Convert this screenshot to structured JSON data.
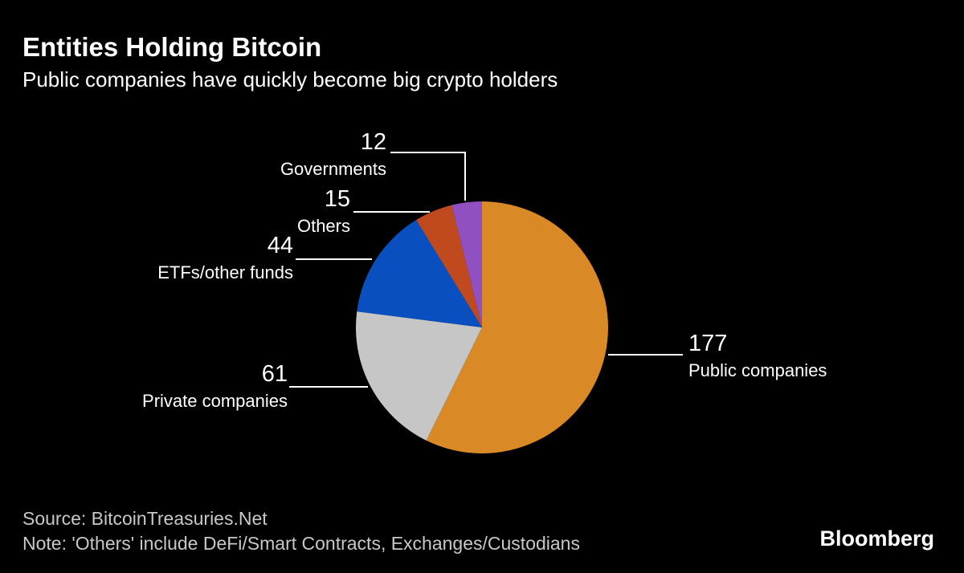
{
  "chart_data": {
    "type": "pie",
    "title": "Entities Holding Bitcoin",
    "subtitle": "Public companies have quickly become big crypto holders",
    "categories": [
      "Public companies",
      "Private companies",
      "ETFs/other funds",
      "Others",
      "Governments"
    ],
    "values": [
      177,
      61,
      44,
      15,
      12
    ],
    "colors": [
      "#d98a27",
      "#c6c6c6",
      "#0a4fbf",
      "#c04a1e",
      "#9150c0"
    ],
    "source": "Source: BitcoinTreasuries.Net",
    "note": "Note: 'Others' include DeFi/Smart Contracts, Exchanges/Custodians"
  },
  "logo": "Bloomberg"
}
